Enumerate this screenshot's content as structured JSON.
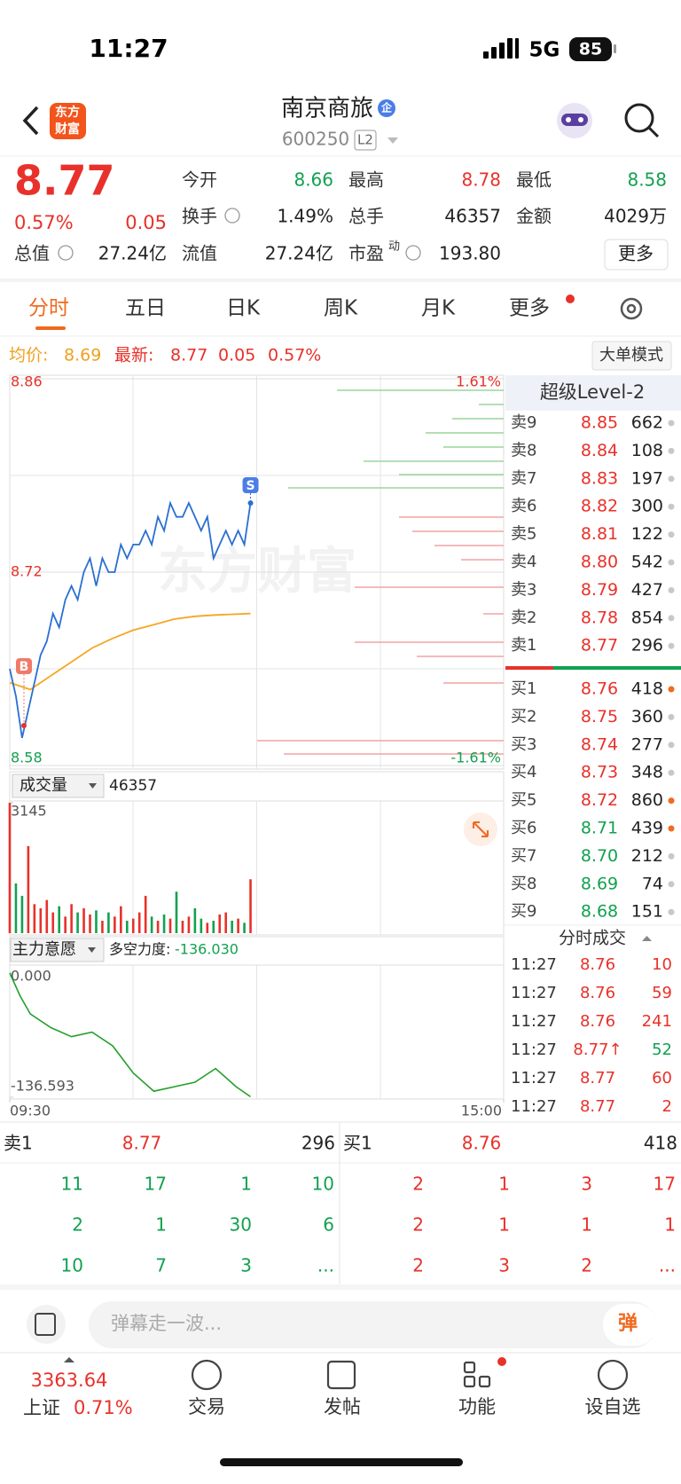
{
  "status": {
    "time": "11:27",
    "network": "5G",
    "battery": "85"
  },
  "header": {
    "logo_line1": "东方",
    "logo_line2": "财富",
    "name": "南京商旅",
    "badge": "企",
    "code": "600250",
    "level": "L2"
  },
  "quote": {
    "price": "8.77",
    "change_pct": "0.57%",
    "change": "0.05",
    "more": "更多",
    "fields": [
      {
        "label": "今开",
        "value": "8.66"
      },
      {
        "label": "最高",
        "value": "8.78"
      },
      {
        "label": "最低",
        "value": "8.58"
      },
      {
        "label": "换手",
        "value": "1.49%"
      },
      {
        "label": "总手",
        "value": "46357"
      },
      {
        "label": "金额",
        "value": "4029万"
      },
      {
        "label": "总值",
        "value": "27.24亿"
      },
      {
        "label": "流值",
        "value": "27.24亿"
      },
      {
        "label": "市盈",
        "sup": "动",
        "value": "193.80"
      }
    ]
  },
  "tabs": [
    "分时",
    "五日",
    "日K",
    "周K",
    "月K",
    "更多"
  ],
  "info": {
    "avg_label": "均价:",
    "avg": "8.69",
    "last_label": "最新:",
    "last": "8.77",
    "change": "0.05",
    "change_pct": "0.57%",
    "mode": "大单模式"
  },
  "intraday": {
    "watermark": "东方财富",
    "buy_marker": "B",
    "sell_marker": "S",
    "xlim": [
      0,
      240
    ],
    "xticks": [
      {
        "value": 0,
        "label": "09:30"
      },
      {
        "value": 240,
        "label": "15:00"
      }
    ],
    "ylim": [
      8.58,
      8.86
    ],
    "yticks": [
      8.58,
      8.72,
      8.86
    ],
    "y2lim": [
      -1.61,
      1.61
    ],
    "y2ticks": [
      {
        "value": -1.61,
        "label": "-1.61%"
      },
      {
        "value": 1.61,
        "label": "1.61%"
      }
    ],
    "x": [
      0,
      3,
      6,
      9,
      12,
      15,
      18,
      21,
      24,
      27,
      30,
      33,
      36,
      39,
      42,
      45,
      48,
      51,
      54,
      57,
      60,
      63,
      66,
      69,
      72,
      75,
      78,
      81,
      84,
      87,
      90,
      93,
      96,
      99,
      102,
      105,
      108,
      111,
      114,
      117
    ],
    "price": [
      8.65,
      8.63,
      8.6,
      8.62,
      8.64,
      8.66,
      8.67,
      8.69,
      8.68,
      8.7,
      8.71,
      8.7,
      8.72,
      8.73,
      8.71,
      8.73,
      8.72,
      8.72,
      8.74,
      8.73,
      8.74,
      8.74,
      8.75,
      8.74,
      8.76,
      8.75,
      8.77,
      8.76,
      8.76,
      8.77,
      8.76,
      8.75,
      8.76,
      8.73,
      8.74,
      8.75,
      8.74,
      8.75,
      8.74,
      8.77
    ],
    "avg_x": [
      0,
      10,
      20,
      30,
      40,
      50,
      60,
      70,
      80,
      90,
      100,
      117
    ],
    "avg": [
      8.64,
      8.635,
      8.645,
      8.655,
      8.665,
      8.672,
      8.678,
      8.682,
      8.686,
      8.688,
      8.689,
      8.69
    ]
  },
  "volume": {
    "label": "成交量",
    "total": "46357",
    "ylim": [
      0,
      3145
    ],
    "yticks": [
      3145
    ],
    "values": [
      3145,
      1200,
      900,
      2100,
      700,
      600,
      800,
      500,
      650,
      400,
      700,
      500,
      600,
      450,
      550,
      300,
      500,
      400,
      650,
      300,
      350,
      500,
      900,
      400,
      300,
      450,
      350,
      1000,
      300,
      400,
      600,
      350,
      250,
      300,
      450,
      500,
      300,
      350,
      250,
      1300
    ]
  },
  "strength": {
    "label": "主力意愿",
    "metric_label": "多空力度:",
    "metric": "-136.030",
    "ylim": [
      -136.593,
      0
    ],
    "yticks": [
      {
        "value": 0,
        "label": "0.000"
      },
      -136.593
    ],
    "x": [
      0,
      5,
      10,
      20,
      30,
      40,
      50,
      60,
      70,
      80,
      90,
      100,
      110,
      117
    ],
    "values": [
      0,
      -25,
      -45,
      -60,
      -70,
      -65,
      -80,
      -110,
      -130,
      -125,
      -120,
      -105,
      -125,
      -136.03
    ]
  },
  "level2": {
    "title": "超级Level-2",
    "asks": [
      {
        "label": "卖9",
        "price": "8.85",
        "volume": "662"
      },
      {
        "label": "卖8",
        "price": "8.84",
        "volume": "108"
      },
      {
        "label": "卖7",
        "price": "8.83",
        "volume": "197"
      },
      {
        "label": "卖6",
        "price": "8.82",
        "volume": "300"
      },
      {
        "label": "卖5",
        "price": "8.81",
        "volume": "122"
      },
      {
        "label": "卖4",
        "price": "8.80",
        "volume": "542"
      },
      {
        "label": "卖3",
        "price": "8.79",
        "volume": "427"
      },
      {
        "label": "卖2",
        "price": "8.78",
        "volume": "854"
      },
      {
        "label": "卖1",
        "price": "8.77",
        "volume": "296"
      }
    ],
    "bids": [
      {
        "label": "买1",
        "price": "8.76",
        "volume": "418",
        "dot": "#f06a1f"
      },
      {
        "label": "买2",
        "price": "8.75",
        "volume": "360",
        "dot": "#c8c8c8"
      },
      {
        "label": "买3",
        "price": "8.74",
        "volume": "277",
        "dot": "#c8c8c8"
      },
      {
        "label": "买4",
        "price": "8.73",
        "volume": "348",
        "dot": "#c8c8c8"
      },
      {
        "label": "买5",
        "price": "8.72",
        "volume": "860",
        "dot": "#f06a1f"
      },
      {
        "label": "买6",
        "price": "8.71",
        "volume": "439",
        "dot": "#f06a1f"
      },
      {
        "label": "买7",
        "price": "8.70",
        "volume": "212",
        "dot": "#c8c8c8"
      },
      {
        "label": "买8",
        "price": "8.69",
        "volume": "74",
        "dot": "#c8c8c8"
      },
      {
        "label": "买9",
        "price": "8.68",
        "volume": "151",
        "dot": "#c8c8c8"
      }
    ]
  },
  "trades": {
    "title": "分时成交",
    "rows": [
      {
        "time": "11:27",
        "price": "8.76",
        "volume": "10",
        "color": "#e8312a"
      },
      {
        "time": "11:27",
        "price": "8.76",
        "volume": "59",
        "color": "#e8312a"
      },
      {
        "time": "11:27",
        "price": "8.76",
        "volume": "241",
        "color": "#e8312a"
      },
      {
        "time": "11:27",
        "price": "8.77↑",
        "volume": "52",
        "color": "#12a150"
      },
      {
        "time": "11:27",
        "price": "8.77",
        "volume": "60",
        "color": "#e8312a"
      },
      {
        "time": "11:27",
        "price": "8.77",
        "volume": "2",
        "color": "#e8312a"
      }
    ]
  },
  "bottom_book": {
    "ask": {
      "label": "卖1",
      "price": "8.77",
      "volume": "296",
      "orders": [
        [
          "11",
          "17",
          "1",
          "10"
        ],
        [
          "2",
          "1",
          "30",
          "6"
        ],
        [
          "10",
          "7",
          "3",
          "..."
        ]
      ]
    },
    "bid": {
      "label": "买1",
      "price": "8.76",
      "volume": "418",
      "orders": [
        [
          "2",
          "1",
          "3",
          "17"
        ],
        [
          "2",
          "1",
          "1",
          "1"
        ],
        [
          "2",
          "3",
          "2",
          "..."
        ]
      ]
    }
  },
  "comment": {
    "placeholder": "弹幕走一波...",
    "danmu": "弹"
  },
  "nav": {
    "index_value": "3363.64",
    "index_name": "上证",
    "index_change": "0.71%",
    "items": [
      "交易",
      "发帖",
      "功能",
      "设自选"
    ]
  }
}
